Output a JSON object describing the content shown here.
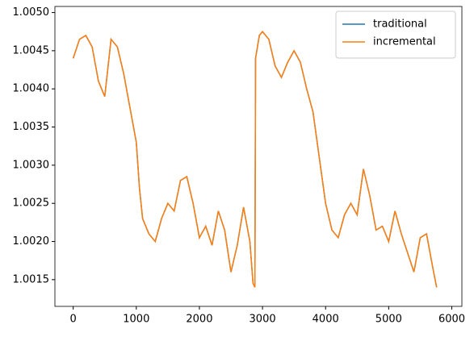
{
  "chart_data": {
    "type": "line",
    "x": [
      0,
      100,
      200,
      300,
      400,
      500,
      600,
      700,
      800,
      900,
      1000,
      1050,
      1100,
      1200,
      1300,
      1400,
      1500,
      1600,
      1700,
      1800,
      1900,
      2000,
      2100,
      2200,
      2300,
      2400,
      2500,
      2600,
      2700,
      2800,
      2850,
      2880,
      2890,
      2950,
      3000,
      3100,
      3200,
      3300,
      3400,
      3500,
      3600,
      3700,
      3800,
      3900,
      4000,
      4100,
      4200,
      4300,
      4400,
      4500,
      4600,
      4700,
      4800,
      4900,
      5000,
      5100,
      5200,
      5300,
      5400,
      5500,
      5600,
      5700,
      5760
    ],
    "series": [
      {
        "name": "traditional",
        "color": "#1f77b4",
        "values": [
          1.0044,
          1.00465,
          1.0047,
          1.00455,
          1.0041,
          1.0039,
          1.00465,
          1.00455,
          1.0042,
          1.00375,
          1.0033,
          1.0027,
          1.0023,
          1.0021,
          1.002,
          1.0023,
          1.0025,
          1.0024,
          1.0028,
          1.00285,
          1.0025,
          1.00205,
          1.0022,
          1.00195,
          1.0024,
          1.00215,
          1.0016,
          1.00195,
          1.00245,
          1.002,
          1.00145,
          1.0014,
          1.0044,
          1.0047,
          1.00475,
          1.00465,
          1.0043,
          1.00415,
          1.00435,
          1.0045,
          1.00435,
          1.004,
          1.0037,
          1.0031,
          1.0025,
          1.00215,
          1.00205,
          1.00235,
          1.0025,
          1.00235,
          1.00295,
          1.0026,
          1.00215,
          1.0022,
          1.002,
          1.0024,
          1.0021,
          1.00185,
          1.0016,
          1.00205,
          1.0021,
          1.00165,
          1.0014
        ]
      },
      {
        "name": "incremental",
        "color": "#ff7f0e",
        "values": [
          1.0044,
          1.00465,
          1.0047,
          1.00455,
          1.0041,
          1.0039,
          1.00465,
          1.00455,
          1.0042,
          1.00375,
          1.0033,
          1.0027,
          1.0023,
          1.0021,
          1.002,
          1.0023,
          1.0025,
          1.0024,
          1.0028,
          1.00285,
          1.0025,
          1.00205,
          1.0022,
          1.00195,
          1.0024,
          1.00215,
          1.0016,
          1.00195,
          1.00245,
          1.002,
          1.00145,
          1.0014,
          1.0044,
          1.0047,
          1.00475,
          1.00465,
          1.0043,
          1.00415,
          1.00435,
          1.0045,
          1.00435,
          1.004,
          1.0037,
          1.0031,
          1.0025,
          1.00215,
          1.00205,
          1.00235,
          1.0025,
          1.00235,
          1.00295,
          1.0026,
          1.00215,
          1.0022,
          1.002,
          1.0024,
          1.0021,
          1.00185,
          1.0016,
          1.00205,
          1.0021,
          1.00165,
          1.0014
        ]
      }
    ],
    "xlim": [
      -290,
      6160
    ],
    "xticks": [
      0,
      1000,
      2000,
      3000,
      4000,
      5000,
      6000
    ],
    "ylim": [
      1.00115,
      1.00508
    ],
    "yticks": [
      {
        "value": 1.0015,
        "label": "1.0015"
      },
      {
        "value": 1.002,
        "label": "1.0020"
      },
      {
        "value": 1.0025,
        "label": "1.0025"
      },
      {
        "value": 1.003,
        "label": "1.0030"
      },
      {
        "value": 1.0035,
        "label": "1.0035"
      },
      {
        "value": 1.004,
        "label": "1.0040"
      },
      {
        "value": 1.0045,
        "label": "1.0045"
      },
      {
        "value": 1.005,
        "label": "1.0050"
      }
    ],
    "legend": "upper right"
  }
}
